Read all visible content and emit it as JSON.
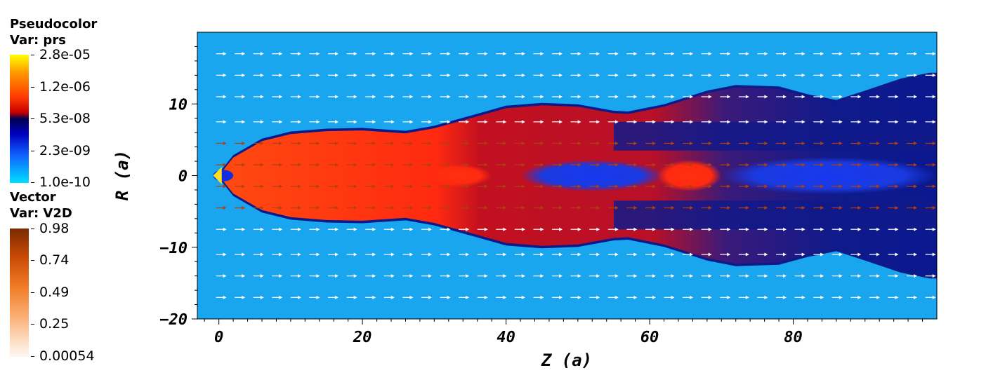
{
  "legend_pseudocolor": {
    "title": "Pseudocolor",
    "var": "Var: prs",
    "ticks": [
      "2.8e-05",
      "1.2e-06",
      "5.3e-08",
      "2.3e-09",
      "1.0e-10"
    ]
  },
  "legend_vector": {
    "title": "Vector",
    "var": "Var: V2D",
    "ticks": [
      "0.98",
      "0.74",
      "0.49",
      "0.25",
      "0.00054"
    ]
  },
  "colors": {
    "ambient": "#1aa6ee",
    "jet_red": "#ff2a10",
    "jet_dark": "#0a1a8a",
    "jet_blue": "#1030e0",
    "arrow": "#ffffff"
  },
  "chart_data": {
    "type": "heatmap",
    "plot_kind": "pseudocolor with vector field overlay",
    "xlabel": "Z (a)",
    "ylabel": "R (a)",
    "xlim": [
      -3,
      100
    ],
    "ylim": [
      -20,
      20
    ],
    "xticks": [
      "0",
      "20",
      "40",
      "60",
      "80"
    ],
    "xtick_values": [
      0,
      20,
      40,
      60,
      80
    ],
    "yticks": [
      "10",
      "0",
      "−10",
      "−20"
    ],
    "ytick_values": [
      10,
      0,
      -10,
      -20
    ],
    "jet_boundary": {
      "z": [
        0,
        2,
        6,
        10,
        15,
        20,
        26,
        30,
        35,
        40,
        45,
        50,
        55,
        57,
        62,
        68,
        72,
        78,
        82,
        86,
        90,
        95,
        99
      ],
      "r": [
        0,
        2.5,
        4.8,
        5.8,
        6.2,
        6.3,
        5.9,
        6.6,
        8.0,
        9.4,
        9.8,
        9.6,
        8.7,
        8.6,
        9.6,
        11.5,
        12.3,
        12.1,
        11.0,
        10.2,
        11.5,
        13.2,
        14.0
      ]
    },
    "vector_field": {
      "r_rows": [
        17,
        14,
        11,
        7.5,
        4.5,
        1.5,
        -1.5,
        -4.5,
        -7.5,
        -11,
        -14,
        -17
      ],
      "z_step": 2.6,
      "direction": "+z"
    }
  }
}
